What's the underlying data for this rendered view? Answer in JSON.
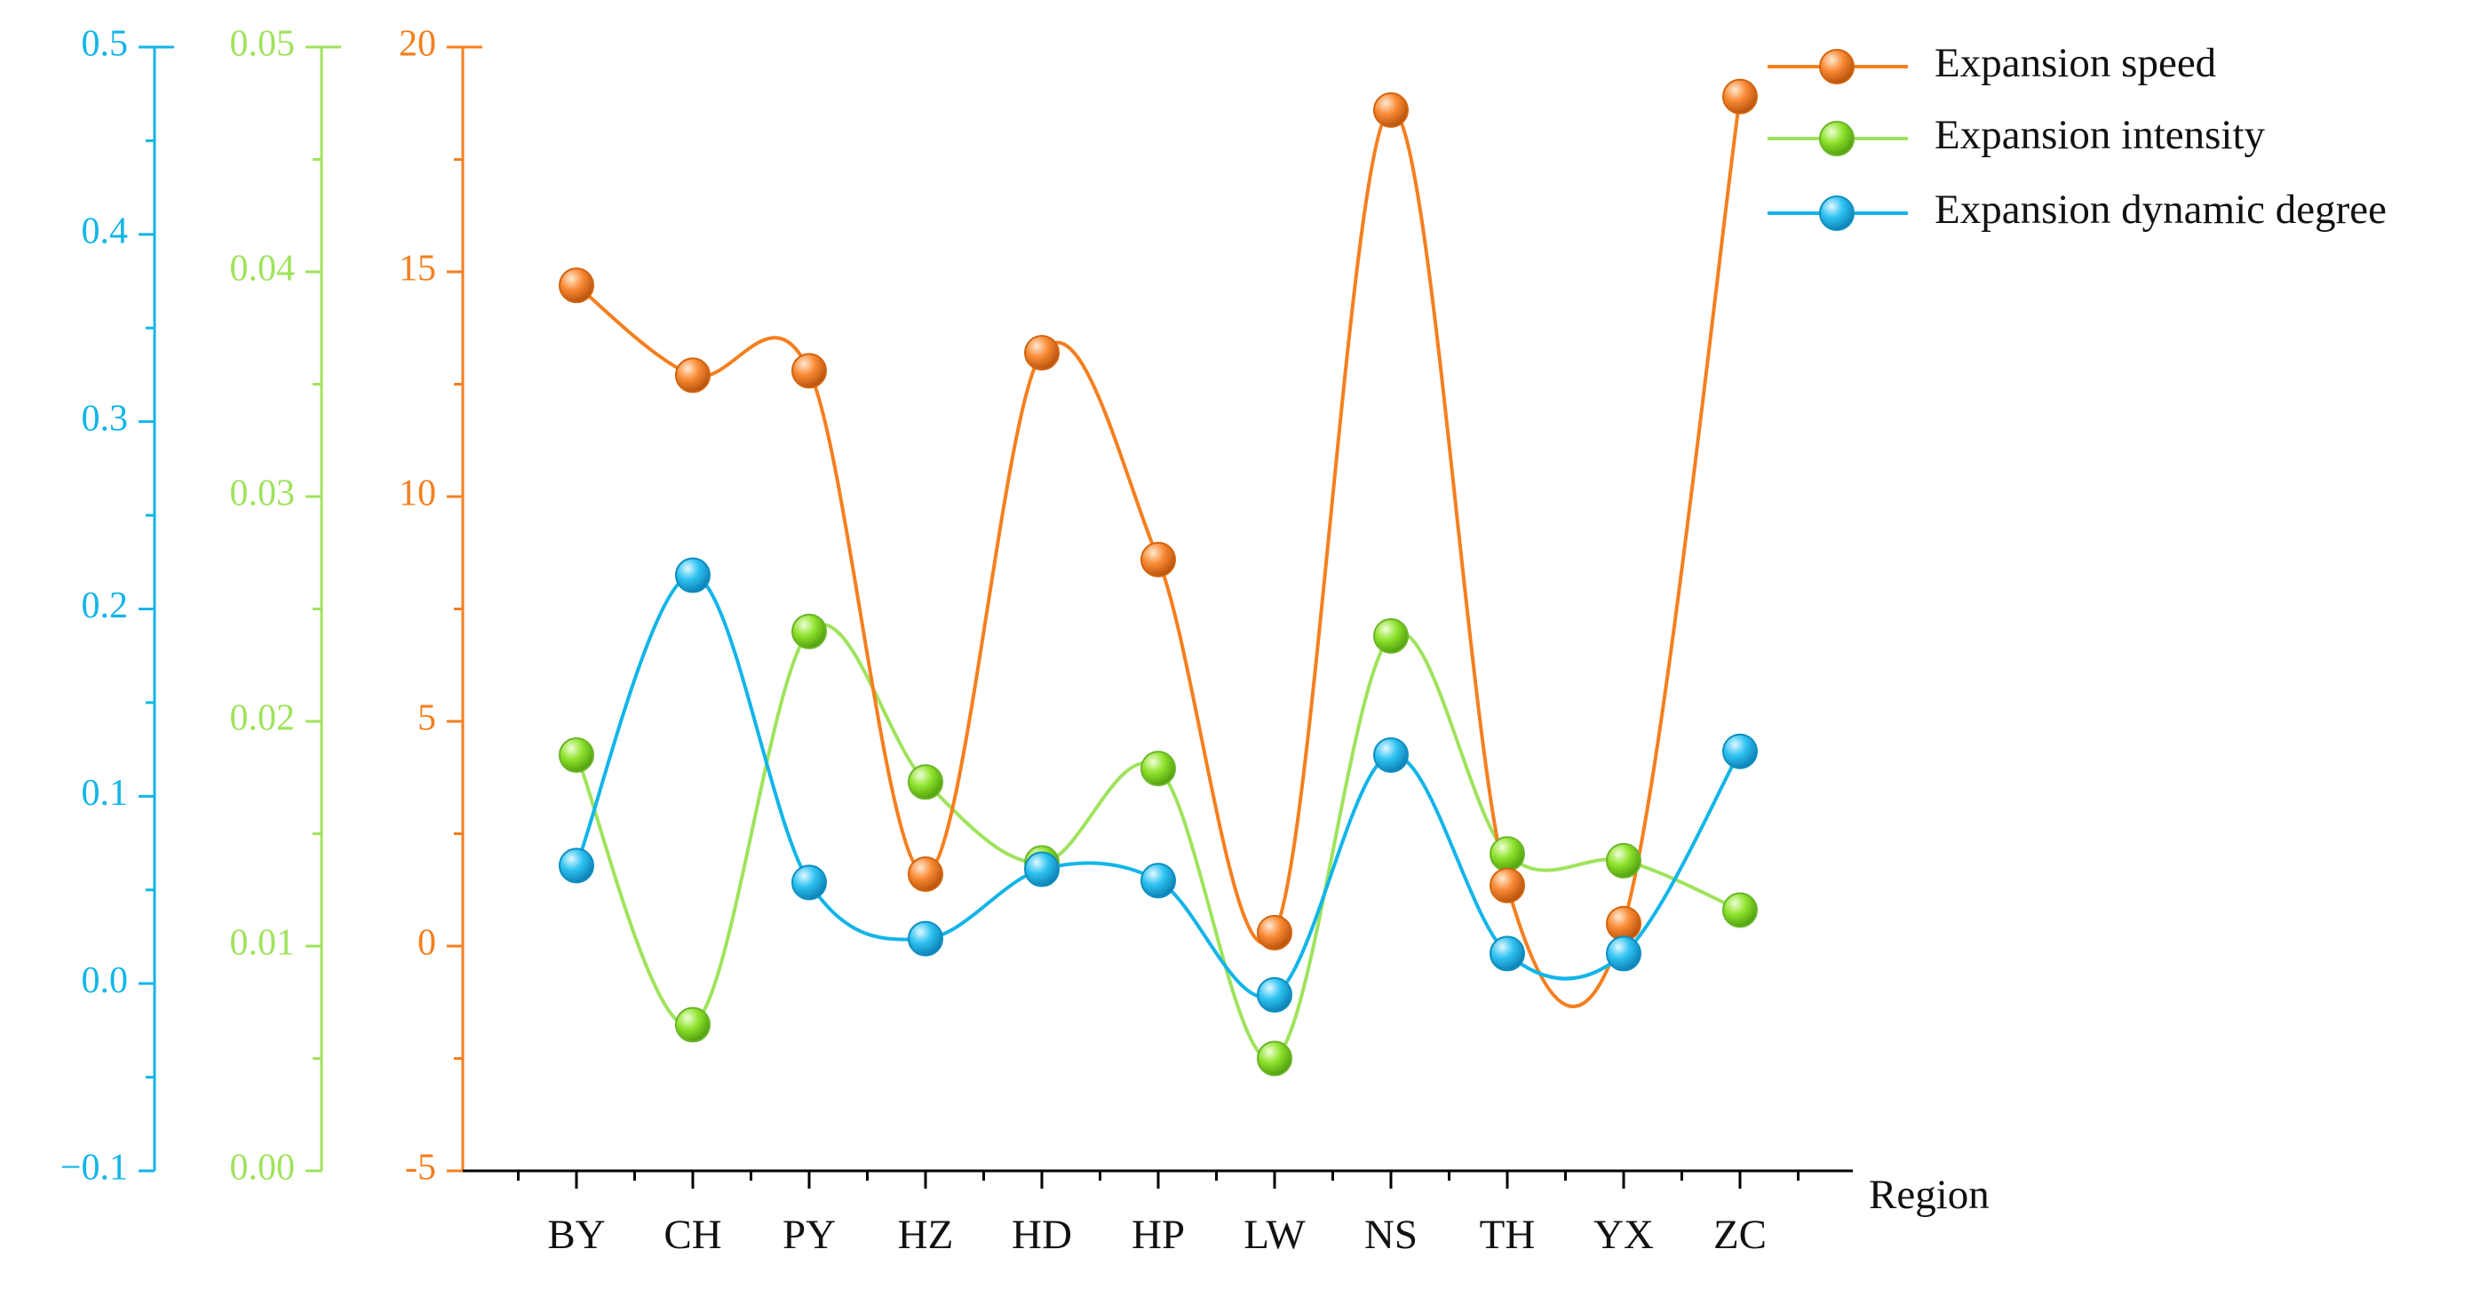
{
  "chart_data": {
    "type": "line",
    "xlabel": "Region",
    "categories": [
      "BY",
      "CH",
      "PY",
      "HZ",
      "HD",
      "HP",
      "LW",
      "NS",
      "TH",
      "YX",
      "ZC"
    ],
    "series": [
      {
        "name": "Expansion speed",
        "axis": "speed",
        "color": "#F57F1F",
        "values": [
          14.7,
          12.7,
          12.8,
          1.6,
          13.2,
          8.6,
          0.3,
          18.6,
          1.35,
          0.5,
          18.9
        ]
      },
      {
        "name": "Expansion intensity",
        "axis": "intensity",
        "color": "#9FE35C",
        "values": [
          0.0185,
          0.0065,
          0.024,
          0.0173,
          0.0137,
          0.0179,
          0.005,
          0.0238,
          0.0141,
          0.0138,
          0.0116
        ]
      },
      {
        "name": "Expansion dynamic degree",
        "axis": "dynamic",
        "color": "#12B5E8",
        "values": [
          0.063,
          0.218,
          0.054,
          0.024,
          0.061,
          0.055,
          -0.006,
          0.122,
          0.016,
          0.016,
          0.124
        ]
      }
    ],
    "axes": {
      "dynamic": {
        "color": "#12B5E8",
        "ylim": [
          -0.1,
          0.5
        ],
        "ticks": [
          -0.1,
          0.0,
          0.1,
          0.2,
          0.3,
          0.4,
          0.5
        ],
        "tick_labels": [
          "−0.1",
          "0.0",
          "0.1",
          "0.2",
          "0.3",
          "0.4",
          "0.5"
        ]
      },
      "intensity": {
        "color": "#9FE35C",
        "ylim": [
          0.0,
          0.05
        ],
        "ticks": [
          0.0,
          0.01,
          0.02,
          0.03,
          0.04,
          0.05
        ],
        "tick_labels": [
          "0.00",
          "0.01",
          "0.02",
          "0.03",
          "0.04",
          "0.05"
        ]
      },
      "speed": {
        "color": "#F57F1F",
        "ylim": [
          -5,
          20
        ],
        "ticks": [
          -5,
          0,
          5,
          10,
          15,
          20
        ],
        "tick_labels": [
          "-5",
          "0",
          "5",
          "10",
          "15",
          "20"
        ]
      }
    },
    "legend": {
      "placement": "top-right"
    },
    "grid": false
  }
}
